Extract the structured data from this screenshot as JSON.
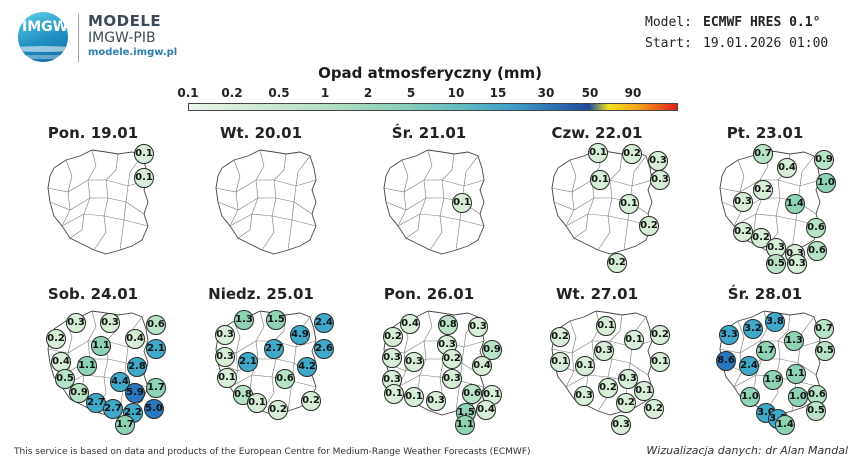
{
  "brand": {
    "logo_text": "IMGW",
    "name_line1": "MODELE",
    "name_line2": "IMGW-PIB",
    "website": "modele.imgw.pl"
  },
  "meta": {
    "model_label": "Model:",
    "model_value": "ECMWF HRES 0.1°",
    "start_label": "Start:",
    "start_value": "19.01.2026 01:00"
  },
  "legend": {
    "title": "Opad atmosferyczny (mm)",
    "ticks": [
      "0.1",
      "0.2",
      "0.5",
      "1",
      "2",
      "5",
      "10",
      "15",
      "30",
      "50",
      "90"
    ]
  },
  "colors": {
    "low": "#d6efd6",
    "mid": "#8fd3b5",
    "high": "#3fa9c9",
    "very_high": "#2a78bd"
  },
  "days": [
    {
      "title": "Pon. 19.01",
      "values": [
        "0.1",
        "0.1"
      ]
    },
    {
      "title": "Wt. 20.01",
      "values": []
    },
    {
      "title": "Śr. 21.01",
      "values": [
        "0.1"
      ]
    },
    {
      "title": "Czw. 22.01",
      "values": [
        "0.1",
        "0.2",
        "0.3",
        "0.1",
        "0.3",
        "0.1",
        "0.2",
        "0.2"
      ]
    },
    {
      "title": "Pt. 23.01",
      "values": [
        "0.7",
        "0.9",
        "0.4",
        "0.2",
        "1.0",
        "0.3",
        "1.4",
        "0.6",
        "0.2",
        "0.2",
        "0.3",
        "0.3",
        "0.6",
        "0.3",
        "0.5"
      ]
    },
    {
      "title": "Sob. 24.01",
      "values": [
        "0.3",
        "0.3",
        "0.6",
        "0.2",
        "0.4",
        "1.1",
        "2.1",
        "0.4",
        "1.1",
        "2.8",
        "0.5",
        "4.4",
        "1.7",
        "0.9",
        "5.9",
        "2.7",
        "2.7",
        "2.2",
        "5.0",
        "1.7"
      ]
    },
    {
      "title": "Niedz. 25.01",
      "values": [
        "1.3",
        "1.5",
        "2.4",
        "0.3",
        "4.9",
        "2.7",
        "2.6",
        "0.3",
        "2.1",
        "4.2",
        "0.1",
        "0.6",
        "0.8",
        "0.2",
        "0.1",
        "0.2"
      ]
    },
    {
      "title": "Pon. 26.01",
      "values": [
        "0.4",
        "0.8",
        "0.3",
        "0.2",
        "0.3",
        "0.9",
        "0.3",
        "0.3",
        "0.2",
        "0.4",
        "0.3",
        "0.3",
        "0.6",
        "0.1",
        "0.1",
        "0.1",
        "0.3",
        "1.5",
        "0.4",
        "1.1"
      ]
    },
    {
      "title": "Wt. 27.01",
      "values": [
        "0.1",
        "0.2",
        "0.1",
        "0.2",
        "0.3",
        "0.1",
        "0.1",
        "0.1",
        "0.3",
        "0.2",
        "0.1",
        "0.3",
        "0.2",
        "0.2",
        "0.3"
      ]
    },
    {
      "title": "Śr. 28.01",
      "values": [
        "3.8",
        "3.3",
        "3.2",
        "0.7",
        "1.3",
        "1.7",
        "0.5",
        "8.6",
        "2.4",
        "1.1",
        "1.9",
        "1.0",
        "1.0",
        "0.6",
        "3.0",
        "3.3",
        "0.5",
        "1.4"
      ]
    }
  ],
  "footer": {
    "disclaimer": "This service is based on data and products of the European Centre for Medium-Range Weather Forecasts (ECMWF)",
    "credit": "Wizualizacja danych: dr Alan Mandal"
  }
}
